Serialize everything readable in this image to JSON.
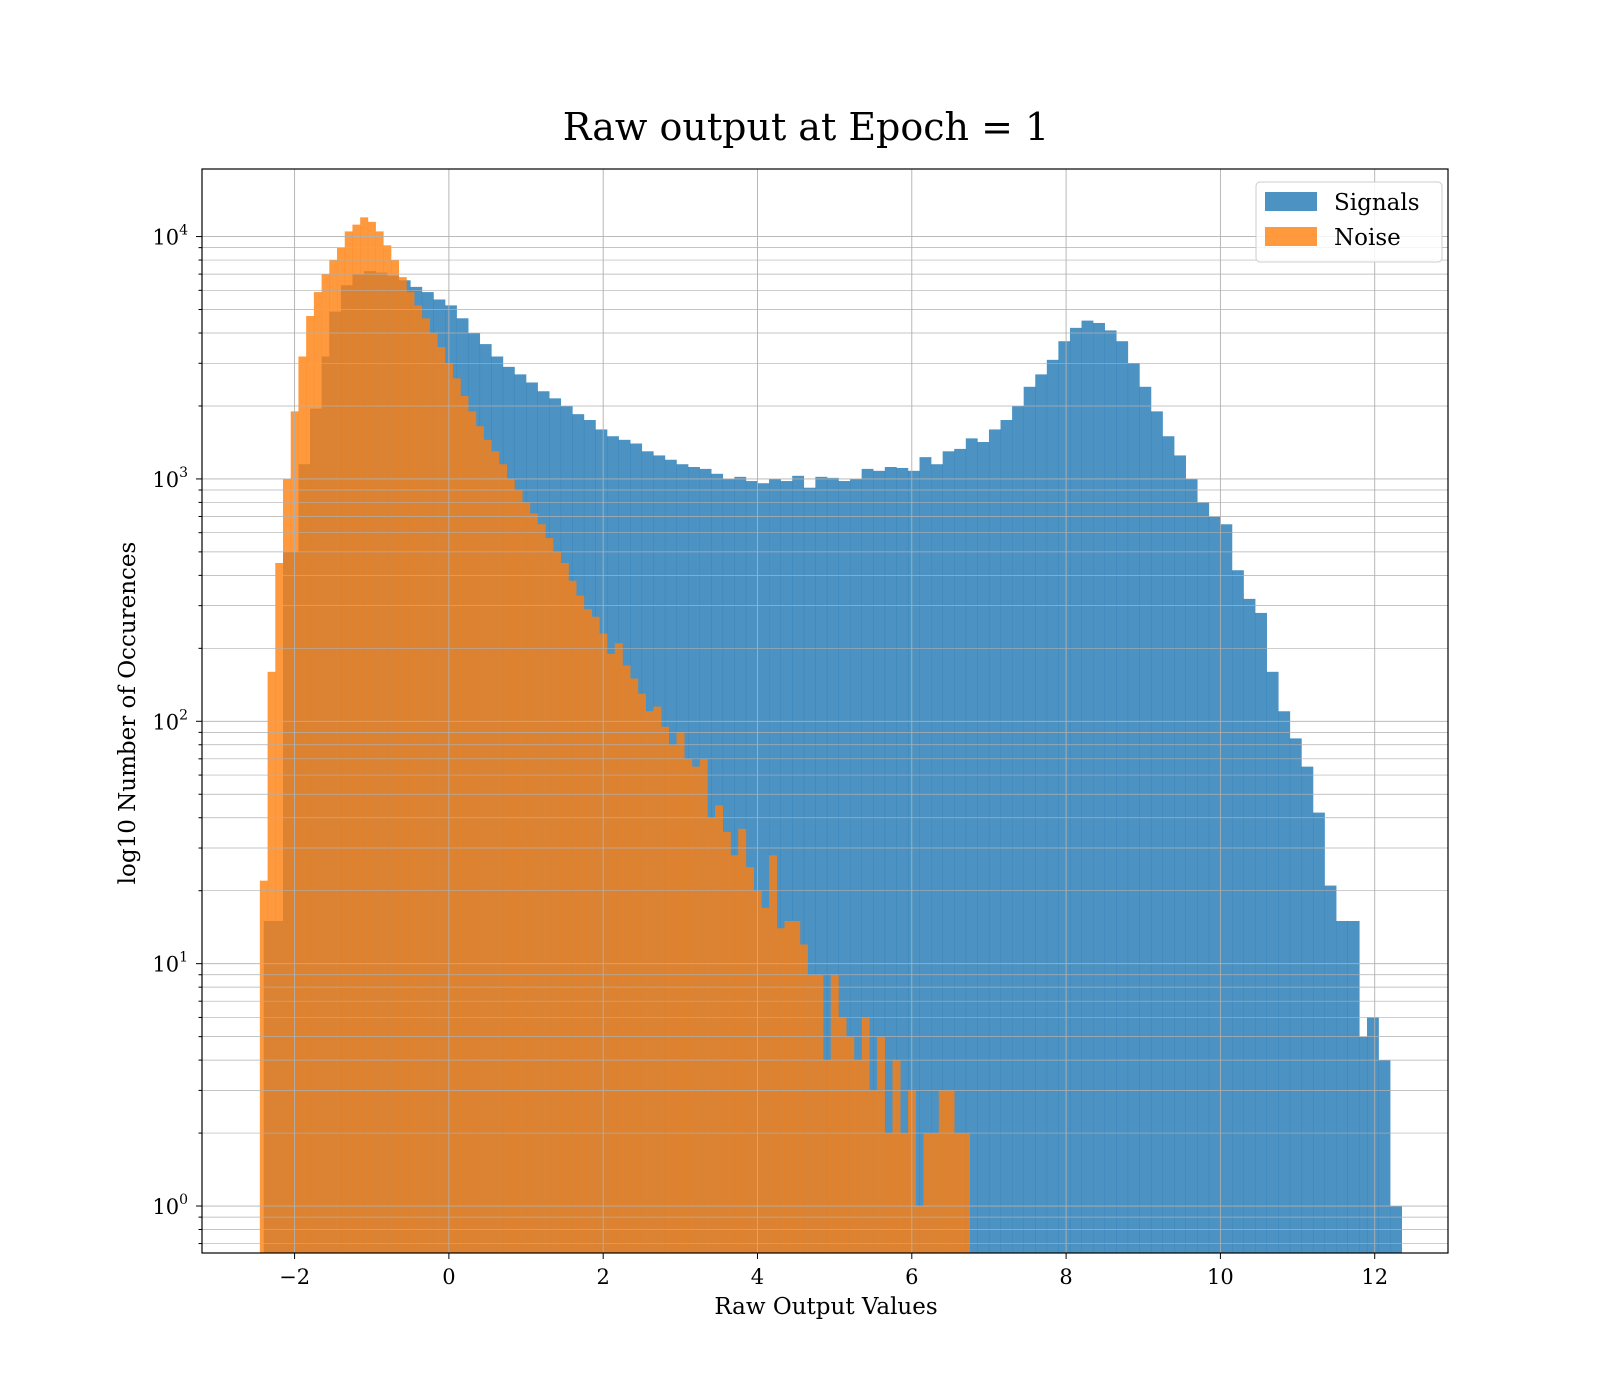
{
  "chart_data": {
    "type": "bar",
    "title": "Raw output at Epoch = 1",
    "xlabel": "Raw Output Values",
    "ylabel": "log10 Number of Occurences",
    "yscale": "log",
    "xlim": [
      -3.2,
      12.95
    ],
    "ylim": [
      0.64,
      19000
    ],
    "xticks": [
      -2,
      0,
      2,
      4,
      6,
      8,
      10,
      12
    ],
    "xtick_labels": [
      "−2",
      "0",
      "2",
      "4",
      "6",
      "8",
      "10",
      "12"
    ],
    "yticks": [
      1,
      10,
      100,
      1000,
      10000
    ],
    "ytick_labels": [
      {
        "base": "10",
        "exp": "0"
      },
      {
        "base": "10",
        "exp": "1"
      },
      {
        "base": "10",
        "exp": "2"
      },
      {
        "base": "10",
        "exp": "3"
      },
      {
        "base": "10",
        "exp": "4"
      }
    ],
    "grid": true,
    "legend_position": "top-right",
    "series": [
      {
        "name": "Signals",
        "color": "#1f77b4",
        "bins": [
          [
            -2.4,
            15
          ],
          [
            -2.15,
            500
          ],
          [
            -1.95,
            1150
          ],
          [
            -1.8,
            1950
          ],
          [
            -1.65,
            3200
          ],
          [
            -1.55,
            4900
          ],
          [
            -1.4,
            6300
          ],
          [
            -1.25,
            7000
          ],
          [
            -1.1,
            7200
          ],
          [
            -0.95,
            7100
          ],
          [
            -0.8,
            6900
          ],
          [
            -0.65,
            6600
          ],
          [
            -0.5,
            6200
          ],
          [
            -0.35,
            5900
          ],
          [
            -0.2,
            5500
          ],
          [
            -0.05,
            5200
          ],
          [
            0.1,
            4600
          ],
          [
            0.25,
            4000
          ],
          [
            0.4,
            3600
          ],
          [
            0.55,
            3200
          ],
          [
            0.7,
            2900
          ],
          [
            0.85,
            2700
          ],
          [
            1.0,
            2500
          ],
          [
            1.15,
            2300
          ],
          [
            1.3,
            2150
          ],
          [
            1.45,
            2000
          ],
          [
            1.6,
            1850
          ],
          [
            1.75,
            1750
          ],
          [
            1.9,
            1600
          ],
          [
            2.05,
            1500
          ],
          [
            2.2,
            1450
          ],
          [
            2.35,
            1400
          ],
          [
            2.5,
            1300
          ],
          [
            2.65,
            1250
          ],
          [
            2.8,
            1200
          ],
          [
            2.95,
            1150
          ],
          [
            3.1,
            1120
          ],
          [
            3.25,
            1100
          ],
          [
            3.4,
            1050
          ],
          [
            3.55,
            1000
          ],
          [
            3.7,
            1020
          ],
          [
            3.85,
            980
          ],
          [
            4.0,
            960
          ],
          [
            4.15,
            1000
          ],
          [
            4.3,
            980
          ],
          [
            4.45,
            1030
          ],
          [
            4.6,
            920
          ],
          [
            4.75,
            1020
          ],
          [
            4.9,
            1010
          ],
          [
            5.05,
            980
          ],
          [
            5.2,
            1000
          ],
          [
            5.35,
            1100
          ],
          [
            5.5,
            1080
          ],
          [
            5.65,
            1120
          ],
          [
            5.8,
            1110
          ],
          [
            5.95,
            1080
          ],
          [
            6.1,
            1230
          ],
          [
            6.25,
            1150
          ],
          [
            6.4,
            1300
          ],
          [
            6.55,
            1330
          ],
          [
            6.7,
            1470
          ],
          [
            6.85,
            1420
          ],
          [
            7.0,
            1600
          ],
          [
            7.15,
            1750
          ],
          [
            7.3,
            2000
          ],
          [
            7.45,
            2400
          ],
          [
            7.6,
            2700
          ],
          [
            7.75,
            3100
          ],
          [
            7.9,
            3700
          ],
          [
            8.05,
            4200
          ],
          [
            8.2,
            4500
          ],
          [
            8.35,
            4400
          ],
          [
            8.5,
            4100
          ],
          [
            8.65,
            3700
          ],
          [
            8.8,
            3000
          ],
          [
            8.95,
            2400
          ],
          [
            9.1,
            1900
          ],
          [
            9.25,
            1500
          ],
          [
            9.4,
            1250
          ],
          [
            9.55,
            1000
          ],
          [
            9.7,
            800
          ],
          [
            9.85,
            700
          ],
          [
            10.0,
            650
          ],
          [
            10.15,
            420
          ],
          [
            10.3,
            320
          ],
          [
            10.45,
            280
          ],
          [
            10.6,
            160
          ],
          [
            10.75,
            110
          ],
          [
            10.9,
            85
          ],
          [
            11.05,
            65
          ],
          [
            11.2,
            42
          ],
          [
            11.35,
            21
          ],
          [
            11.5,
            15
          ],
          [
            11.65,
            15
          ],
          [
            11.8,
            5
          ],
          [
            11.9,
            6
          ],
          [
            12.05,
            4
          ],
          [
            12.2,
            1
          ]
        ]
      },
      {
        "name": "Noise",
        "color": "#ff7f0e",
        "bins": [
          [
            -2.45,
            22
          ],
          [
            -2.35,
            160
          ],
          [
            -2.25,
            450
          ],
          [
            -2.15,
            1000
          ],
          [
            -2.05,
            1900
          ],
          [
            -1.95,
            3200
          ],
          [
            -1.85,
            4700
          ],
          [
            -1.75,
            5900
          ],
          [
            -1.65,
            7000
          ],
          [
            -1.55,
            8000
          ],
          [
            -1.45,
            9000
          ],
          [
            -1.35,
            10500
          ],
          [
            -1.25,
            11200
          ],
          [
            -1.15,
            12000
          ],
          [
            -1.05,
            11500
          ],
          [
            -0.95,
            10500
          ],
          [
            -0.85,
            9200
          ],
          [
            -0.75,
            8000
          ],
          [
            -0.65,
            6800
          ],
          [
            -0.55,
            5900
          ],
          [
            -0.45,
            5200
          ],
          [
            -0.35,
            4600
          ],
          [
            -0.25,
            4000
          ],
          [
            -0.15,
            3500
          ],
          [
            -0.05,
            3000
          ],
          [
            0.05,
            2600
          ],
          [
            0.15,
            2200
          ],
          [
            0.25,
            1900
          ],
          [
            0.35,
            1650
          ],
          [
            0.45,
            1450
          ],
          [
            0.55,
            1300
          ],
          [
            0.65,
            1150
          ],
          [
            0.75,
            1000
          ],
          [
            0.85,
            900
          ],
          [
            0.95,
            800
          ],
          [
            1.05,
            720
          ],
          [
            1.15,
            650
          ],
          [
            1.25,
            570
          ],
          [
            1.35,
            500
          ],
          [
            1.45,
            450
          ],
          [
            1.55,
            380
          ],
          [
            1.65,
            330
          ],
          [
            1.75,
            290
          ],
          [
            1.85,
            270
          ],
          [
            1.95,
            230
          ],
          [
            2.05,
            190
          ],
          [
            2.15,
            210
          ],
          [
            2.25,
            170
          ],
          [
            2.35,
            150
          ],
          [
            2.45,
            130
          ],
          [
            2.55,
            110
          ],
          [
            2.65,
            115
          ],
          [
            2.75,
            95
          ],
          [
            2.85,
            80
          ],
          [
            2.95,
            90
          ],
          [
            3.05,
            70
          ],
          [
            3.15,
            65
          ],
          [
            3.25,
            70
          ],
          [
            3.35,
            40
          ],
          [
            3.45,
            45
          ],
          [
            3.55,
            35
          ],
          [
            3.65,
            28
          ],
          [
            3.75,
            36
          ],
          [
            3.85,
            25
          ],
          [
            3.95,
            20
          ],
          [
            4.05,
            17
          ],
          [
            4.15,
            28
          ],
          [
            4.25,
            14
          ],
          [
            4.35,
            15
          ],
          [
            4.45,
            15
          ],
          [
            4.55,
            12
          ],
          [
            4.65,
            9
          ],
          [
            4.75,
            9
          ],
          [
            4.85,
            4
          ],
          [
            4.95,
            9
          ],
          [
            5.05,
            6
          ],
          [
            5.15,
            5
          ],
          [
            5.25,
            4
          ],
          [
            5.35,
            6
          ],
          [
            5.45,
            3
          ],
          [
            5.55,
            5
          ],
          [
            5.65,
            2
          ],
          [
            5.75,
            4
          ],
          [
            5.85,
            2
          ],
          [
            5.95,
            3
          ],
          [
            6.05,
            1
          ],
          [
            6.15,
            2
          ],
          [
            6.25,
            2
          ],
          [
            6.35,
            3
          ],
          [
            6.45,
            3
          ],
          [
            6.55,
            2
          ],
          [
            6.65,
            2
          ]
        ]
      }
    ]
  }
}
